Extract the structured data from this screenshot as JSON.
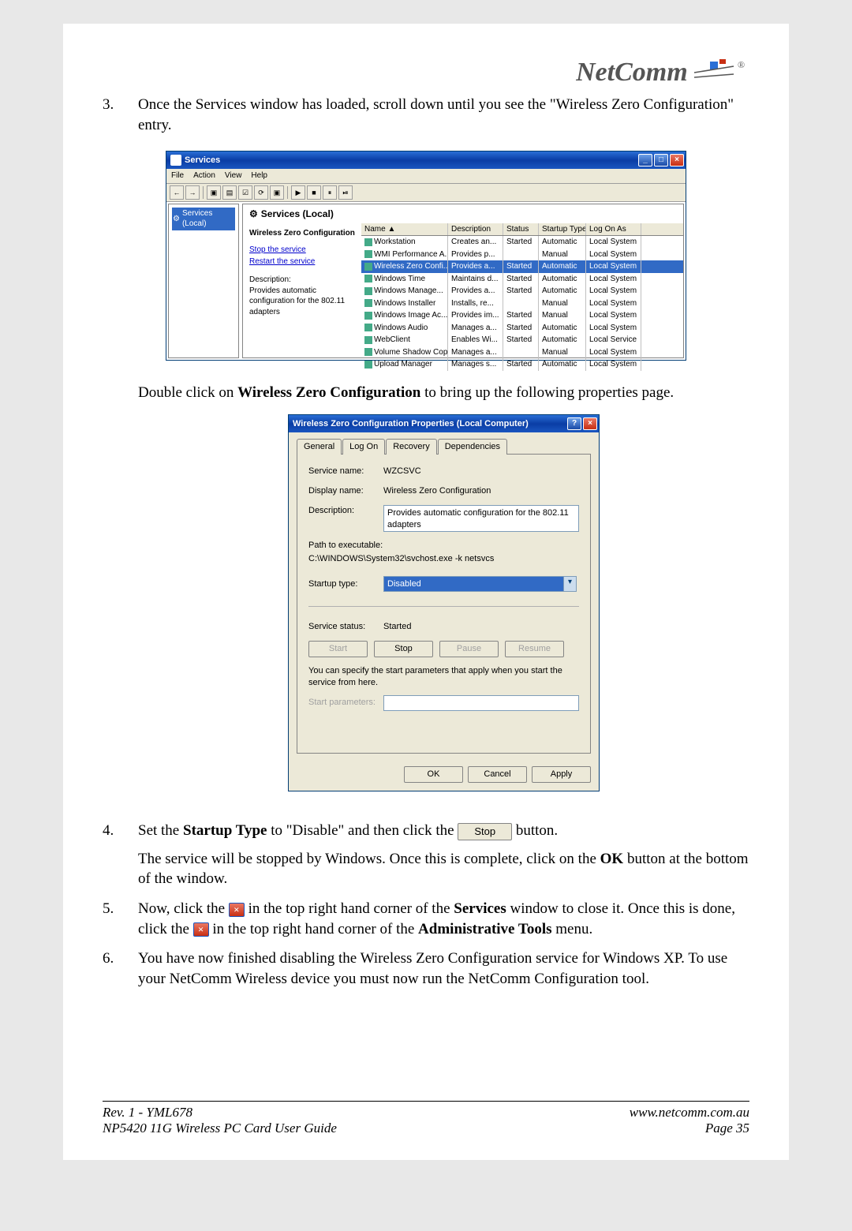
{
  "logo_text": "NetComm",
  "step3": {
    "num": "3.",
    "text_a": "Once the Services window has loaded, scroll down until you see the \"Wireless Zero Configuration\" entry."
  },
  "services": {
    "title": "Services",
    "menu": [
      "File",
      "Action",
      "View",
      "Help"
    ],
    "tree_label": "Services (Local)",
    "header": "Services (Local)",
    "left": {
      "svctitle": "Wireless Zero Configuration",
      "link_stop": "Stop the service",
      "link_restart": "Restart the service",
      "desc_h": "Description:",
      "desc": "Provides automatic configuration for the 802.11 adapters"
    },
    "cols": {
      "name": "Name ▲",
      "desc": "Description",
      "stat": "Status",
      "start": "Startup Type",
      "log": "Log On As"
    },
    "rows": [
      {
        "name": "Workstation",
        "desc": "Creates an...",
        "stat": "Started",
        "start": "Automatic",
        "log": "Local System"
      },
      {
        "name": "WMI Performance A...",
        "desc": "Provides p...",
        "stat": "",
        "start": "Manual",
        "log": "Local System"
      },
      {
        "name": "Wireless Zero Confi...",
        "desc": "Provides a...",
        "stat": "Started",
        "start": "Automatic",
        "log": "Local System",
        "sel": true
      },
      {
        "name": "Windows Time",
        "desc": "Maintains d...",
        "stat": "Started",
        "start": "Automatic",
        "log": "Local System"
      },
      {
        "name": "Windows Manage...",
        "desc": "Provides a...",
        "stat": "Started",
        "start": "Automatic",
        "log": "Local System"
      },
      {
        "name": "Windows Installer",
        "desc": "Installs, re...",
        "stat": "",
        "start": "Manual",
        "log": "Local System"
      },
      {
        "name": "Windows Image Ac...",
        "desc": "Provides im...",
        "stat": "Started",
        "start": "Manual",
        "log": "Local System"
      },
      {
        "name": "Windows Audio",
        "desc": "Manages a...",
        "stat": "Started",
        "start": "Automatic",
        "log": "Local System"
      },
      {
        "name": "WebClient",
        "desc": "Enables Wi...",
        "stat": "Started",
        "start": "Automatic",
        "log": "Local Service"
      },
      {
        "name": "Volume Shadow Copy",
        "desc": "Manages a...",
        "stat": "",
        "start": "Manual",
        "log": "Local System"
      },
      {
        "name": "Upload Manager",
        "desc": "Manages s...",
        "stat": "Started",
        "start": "Automatic",
        "log": "Local System"
      }
    ]
  },
  "mid_text": {
    "a": "Double click on ",
    "b": "Wireless Zero Configuration",
    "c": " to bring up the following properties page."
  },
  "props": {
    "title": "Wireless Zero Configuration Properties (Local Computer)",
    "tabs": [
      "General",
      "Log On",
      "Recovery",
      "Dependencies"
    ],
    "svcname_l": "Service name:",
    "svcname_v": "WZCSVC",
    "dispname_l": "Display name:",
    "dispname_v": "Wireless Zero Configuration",
    "desc_l": "Description:",
    "desc_v": "Provides automatic configuration for the 802.11 adapters",
    "path_l": "Path to executable:",
    "path_v": "C:\\WINDOWS\\System32\\svchost.exe -k netsvcs",
    "startup_l": "Startup type:",
    "startup_v": "Disabled",
    "status_l": "Service status:",
    "status_v": "Started",
    "btn_start": "Start",
    "btn_stop": "Stop",
    "btn_pause": "Pause",
    "btn_resume": "Resume",
    "startparam_hint": "You can specify the start parameters that apply when you start the service from here.",
    "startparam_l": "Start parameters:",
    "ok": "OK",
    "cancel": "Cancel",
    "apply": "Apply"
  },
  "step4": {
    "num": "4.",
    "a": "Set the ",
    "b": "Startup Type",
    "c": " to \"Disable\" and then click the ",
    "btn": "Stop",
    "d": " button.",
    "para2a": "The service will be stopped by Windows. Once this is complete, click on the ",
    "para2b": "OK",
    "para2c": " button at the bottom of the window."
  },
  "step5": {
    "num": "5.",
    "a": "Now, click the ",
    "b": " in the top right hand corner of the ",
    "c": "Services",
    "d": " window to close it. Once this is done, click the ",
    "e": " in the top right hand corner of the ",
    "f": "Administrative Tools",
    "g": " menu."
  },
  "step6": {
    "num": "6.",
    "text": "You have now finished disabling the Wireless Zero Configuration service for Windows XP. To use your NetComm Wireless device you must now run the NetComm Configuration tool."
  },
  "footer": {
    "l1": "Rev. 1 - YML678",
    "l2": "NP5420 11G Wireless PC Card User Guide",
    "r1": "www.netcomm.com.au",
    "r2": "Page 35"
  }
}
